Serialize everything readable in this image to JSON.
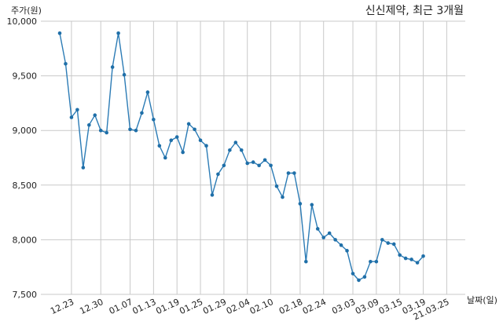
{
  "chart_data": {
    "type": "line",
    "title": "신신제약, 최근 3개월",
    "ylabel": "주가(원)",
    "xlabel": "날짜(일)",
    "ylim": [
      7500,
      10000
    ],
    "yticks": [
      7500,
      8000,
      8500,
      9000,
      9500,
      10000
    ],
    "ytick_labels": [
      "7,500",
      "8,000",
      "8,500",
      "9,000",
      "9,500",
      "10,000"
    ],
    "xtick_labels": [
      "12.23",
      "12.30",
      "01.07",
      "01.13",
      "01.19",
      "01.25",
      "01.29",
      "02.04",
      "02.10",
      "02.18",
      "02.24",
      "03.03",
      "03.09",
      "03.15",
      "03.19",
      "21.03.25"
    ],
    "xtick_index": [
      2,
      7,
      12,
      16,
      20,
      24,
      28,
      32,
      36,
      41,
      45,
      50,
      54,
      58,
      62,
      66
    ],
    "grid": true,
    "color": "#2b7bb5",
    "series": [
      {
        "values": [
          9890,
          9610,
          9120,
          9190,
          8660,
          9050,
          9140,
          9000,
          8980,
          9580,
          9890,
          9510,
          9010,
          9000,
          9160,
          9350,
          9100,
          8860,
          8750,
          8910,
          8940,
          8800,
          9060,
          9010,
          8910,
          8860,
          8410,
          8600,
          8680,
          8820,
          8890,
          8820,
          8700,
          8710,
          8680,
          8730,
          8680,
          8490,
          8390,
          8610,
          8610,
          8330,
          7800,
          8320,
          8100,
          8020,
          8060,
          8000,
          7950,
          7900,
          7690,
          7630,
          7660,
          7800,
          7800,
          8000,
          7970,
          7960,
          7860,
          7830,
          7820,
          7790,
          7850
        ]
      }
    ]
  }
}
